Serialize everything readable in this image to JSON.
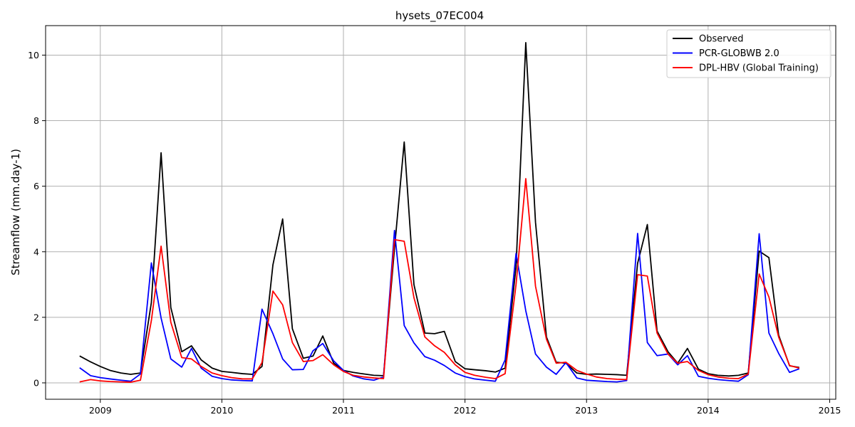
{
  "chart_data": {
    "type": "line",
    "title": "hysets_07EC004",
    "xlabel": "",
    "ylabel": "Streamflow (mm.day-1)",
    "xlim": [
      2008.55,
      2015.05
    ],
    "ylim": [
      -0.5,
      10.9
    ],
    "xticks": [
      2009,
      2010,
      2011,
      2012,
      2013,
      2014,
      2015
    ],
    "yticks": [
      0,
      2,
      4,
      6,
      8,
      10
    ],
    "grid": true,
    "legend_position": "top-right",
    "colors": {
      "Observed": "#000000",
      "PCR-GLOBWB 2.0": "#0000ff",
      "DPL-HBV (Global Training)": "#ff0000"
    },
    "x": [
      2008.83,
      2008.92,
      2009.0,
      2009.08,
      2009.17,
      2009.25,
      2009.33,
      2009.42,
      2009.5,
      2009.58,
      2009.67,
      2009.75,
      2009.83,
      2009.92,
      2010.0,
      2010.08,
      2010.17,
      2010.25,
      2010.33,
      2010.42,
      2010.5,
      2010.58,
      2010.67,
      2010.75,
      2010.83,
      2010.92,
      2011.0,
      2011.08,
      2011.17,
      2011.25,
      2011.33,
      2011.42,
      2011.5,
      2011.58,
      2011.67,
      2011.75,
      2011.83,
      2011.92,
      2012.0,
      2012.08,
      2012.17,
      2012.25,
      2012.33,
      2012.42,
      2012.5,
      2012.58,
      2012.67,
      2012.75,
      2012.83,
      2012.92,
      2013.0,
      2013.08,
      2013.17,
      2013.25,
      2013.33,
      2013.42,
      2013.5,
      2013.58,
      2013.67,
      2013.75,
      2013.83,
      2013.92,
      2014.0,
      2014.08,
      2014.17,
      2014.25,
      2014.33,
      2014.42,
      2014.5,
      2014.58,
      2014.67,
      2014.75
    ],
    "series": [
      {
        "name": "Observed",
        "values": [
          0.82,
          0.64,
          0.5,
          0.38,
          0.3,
          0.26,
          0.3,
          2.45,
          7.02,
          2.3,
          0.95,
          1.13,
          0.7,
          0.45,
          0.35,
          0.32,
          0.28,
          0.26,
          0.5,
          3.6,
          5.0,
          1.65,
          0.75,
          0.82,
          1.43,
          0.6,
          0.38,
          0.32,
          0.27,
          0.23,
          0.22,
          4.1,
          7.35,
          3.0,
          1.52,
          1.5,
          1.57,
          0.65,
          0.43,
          0.4,
          0.37,
          0.33,
          0.45,
          3.55,
          10.38,
          4.9,
          1.4,
          0.63,
          0.6,
          0.3,
          0.26,
          0.27,
          0.26,
          0.25,
          0.23,
          3.65,
          4.83,
          1.58,
          0.95,
          0.6,
          1.05,
          0.42,
          0.28,
          0.23,
          0.21,
          0.23,
          0.3,
          4.02,
          3.82,
          1.46,
          0.52,
          0.47
        ]
      },
      {
        "name": "PCR-GLOBWB 2.0",
        "values": [
          0.46,
          0.22,
          0.16,
          0.12,
          0.08,
          0.05,
          0.27,
          3.66,
          1.98,
          0.73,
          0.48,
          1.05,
          0.45,
          0.2,
          0.13,
          0.09,
          0.07,
          0.06,
          2.25,
          1.5,
          0.73,
          0.4,
          0.41,
          0.98,
          1.2,
          0.67,
          0.38,
          0.21,
          0.12,
          0.08,
          0.18,
          4.65,
          1.75,
          1.22,
          0.8,
          0.69,
          0.53,
          0.3,
          0.19,
          0.12,
          0.08,
          0.05,
          0.7,
          3.95,
          2.2,
          0.88,
          0.48,
          0.26,
          0.62,
          0.15,
          0.08,
          0.06,
          0.04,
          0.03,
          0.07,
          4.56,
          1.23,
          0.83,
          0.88,
          0.55,
          0.83,
          0.2,
          0.14,
          0.1,
          0.07,
          0.05,
          0.25,
          4.55,
          1.52,
          0.9,
          0.32,
          0.43
        ]
      },
      {
        "name": "DPL-HBV (Global Training)",
        "values": [
          0.03,
          0.1,
          0.06,
          0.04,
          0.03,
          0.02,
          0.08,
          1.9,
          4.17,
          1.85,
          0.77,
          0.73,
          0.5,
          0.3,
          0.22,
          0.16,
          0.12,
          0.12,
          0.62,
          2.8,
          2.38,
          1.23,
          0.65,
          0.68,
          0.86,
          0.55,
          0.35,
          0.23,
          0.18,
          0.15,
          0.13,
          4.37,
          4.32,
          2.6,
          1.4,
          1.13,
          0.93,
          0.55,
          0.32,
          0.23,
          0.17,
          0.13,
          0.28,
          3.0,
          6.23,
          2.95,
          1.33,
          0.6,
          0.63,
          0.38,
          0.27,
          0.18,
          0.13,
          0.11,
          0.1,
          3.3,
          3.26,
          1.52,
          0.88,
          0.6,
          0.65,
          0.38,
          0.25,
          0.18,
          0.14,
          0.13,
          0.27,
          3.32,
          2.62,
          1.4,
          0.53,
          0.45
        ]
      }
    ]
  }
}
